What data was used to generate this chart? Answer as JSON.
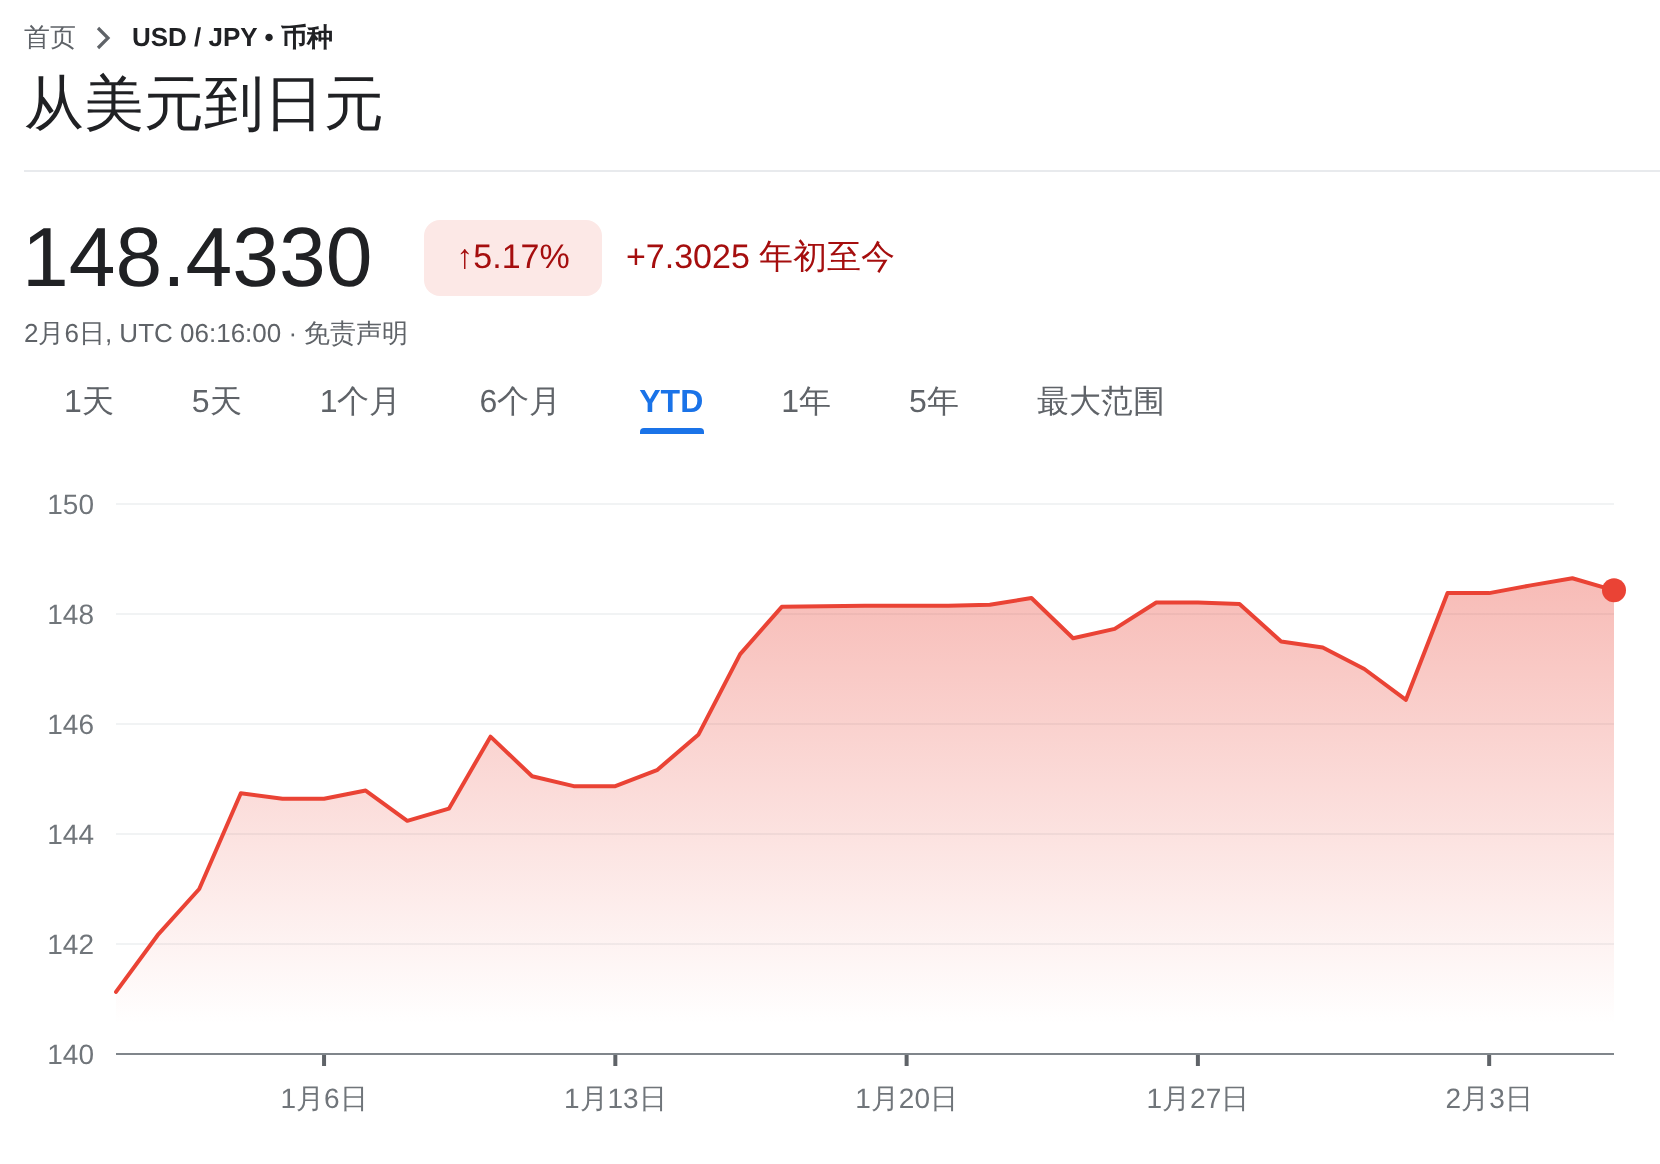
{
  "chart_data": {
    "type": "area",
    "title": "从美元到日元",
    "annotations": [
      "首页",
      "USD / JPY • 币种",
      "148.4330",
      "↑5.17%",
      "+7.3025 年初至今",
      "2月6日, UTC 06:16:00 · 免责声明",
      "1天",
      "5天",
      "1个月",
      "6个月",
      "YTD",
      "1年",
      "5年",
      "最大范围"
    ],
    "x": [
      "--01-01",
      "--01-02",
      "--01-03",
      "--01-04",
      "--01-05",
      "--01-06",
      "--01-07",
      "--01-08",
      "--01-09",
      "--01-10",
      "--01-11",
      "--01-12",
      "--01-13",
      "--01-14",
      "--01-15",
      "--01-16",
      "--01-17",
      "--01-18",
      "--01-19",
      "--01-20",
      "--01-21",
      "--01-22",
      "--01-23",
      "--01-24",
      "--01-25",
      "--01-26",
      "--01-27",
      "--01-28",
      "--01-29",
      "--01-30",
      "--01-31",
      "--02-01",
      "--02-02",
      "--02-03",
      "--02-04",
      "--02-05",
      "--02-06"
    ],
    "series": [
      {
        "color": "#ea4335",
        "values": [
          141.13,
          142.16,
          143.0,
          144.74,
          144.64,
          144.64,
          144.79,
          144.24,
          144.46,
          145.77,
          145.05,
          144.87,
          144.87,
          145.16,
          145.81,
          147.27,
          148.13,
          148.14,
          148.15,
          148.15,
          148.15,
          148.17,
          148.29,
          147.56,
          147.73,
          148.21,
          148.21,
          148.18,
          147.5,
          147.39,
          147.0,
          146.44,
          148.38,
          148.38,
          148.52,
          148.65,
          148.43
        ]
      },
      {
        "type": "scatter",
        "color": "#ea4335",
        "x": [
          "--02-06"
        ],
        "values": [
          148.43
        ]
      }
    ],
    "xlim": [
      "--01-01",
      "--02-06"
    ],
    "xticks": [
      {
        "value": "--01-06",
        "label": "1月6日"
      },
      {
        "value": "--01-13",
        "label": "1月13日"
      },
      {
        "value": "--01-20",
        "label": "1月20日"
      },
      {
        "value": "--01-27",
        "label": "1月27日"
      },
      {
        "value": "--02-03",
        "label": "2月3日"
      }
    ],
    "ylim": [
      140,
      150
    ],
    "yticks": [
      140,
      142,
      144,
      146,
      148,
      150
    ],
    "grid": "y"
  }
}
